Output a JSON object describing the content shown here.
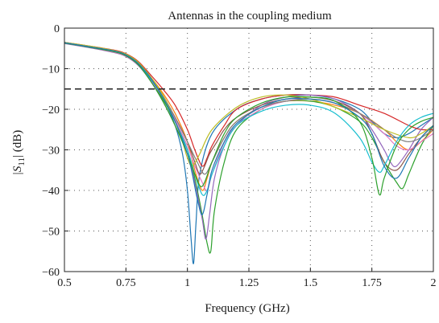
{
  "chart_data": {
    "type": "line",
    "title": "Antennas in the coupling medium",
    "xlabel": "Frequency (GHz)",
    "ylabel_main": "|S",
    "ylabel_sub": "11",
    "ylabel_tail": "| (dB)",
    "xlim": [
      0.5,
      2.0
    ],
    "ylim": [
      -60,
      0
    ],
    "xticks": [
      0.5,
      0.75,
      1.0,
      1.25,
      1.5,
      1.75,
      2.0
    ],
    "xtick_labels": [
      "0.5",
      "0.75",
      "1",
      "1.25",
      "1.5",
      "1.75",
      "2"
    ],
    "yticks": [
      0,
      -10,
      -20,
      -30,
      -40,
      -50,
      -60
    ],
    "ytick_labels": [
      "0",
      "−10",
      "−20",
      "−30",
      "−40",
      "−50",
      "−60"
    ],
    "grid": true,
    "reference_line": {
      "y": -15,
      "style": "dashed",
      "color": "#222222"
    },
    "series": [
      {
        "color": "#1f77b4",
        "x": [
          0.5,
          0.6,
          0.7,
          0.75,
          0.8,
          0.85,
          0.9,
          0.95,
          0.98,
          1.0,
          1.015,
          1.025,
          1.035,
          1.05,
          1.1,
          1.2,
          1.3,
          1.4,
          1.5,
          1.6,
          1.7,
          1.75,
          1.8,
          1.85,
          1.9,
          1.95,
          2.0
        ],
        "y": [
          -3.5,
          -4.5,
          -5.5,
          -6.5,
          -8.5,
          -12,
          -17,
          -24,
          -31,
          -40,
          -52,
          -58,
          -48,
          -36,
          -26,
          -20,
          -17.5,
          -16.5,
          -16.5,
          -17.5,
          -20,
          -23,
          -26,
          -27,
          -26,
          -24,
          -22
        ]
      },
      {
        "color": "#ff7f0e",
        "x": [
          0.5,
          0.6,
          0.7,
          0.75,
          0.8,
          0.85,
          0.9,
          0.95,
          1.0,
          1.03,
          1.06,
          1.08,
          1.1,
          1.15,
          1.2,
          1.3,
          1.4,
          1.5,
          1.6,
          1.7,
          1.8,
          1.85,
          1.9,
          1.95,
          2.0
        ],
        "y": [
          -3.6,
          -4.6,
          -5.6,
          -6.6,
          -8.6,
          -12,
          -16,
          -21,
          -28,
          -35,
          -40,
          -37,
          -33,
          -27,
          -23,
          -19.5,
          -18,
          -18,
          -19,
          -21,
          -25,
          -28,
          -30,
          -28,
          -25
        ]
      },
      {
        "color": "#2ca02c",
        "x": [
          0.5,
          0.6,
          0.7,
          0.75,
          0.8,
          0.85,
          0.9,
          0.95,
          1.0,
          1.03,
          1.06,
          1.08,
          1.095,
          1.11,
          1.15,
          1.2,
          1.3,
          1.4,
          1.5,
          1.6,
          1.7,
          1.75,
          1.8,
          1.85,
          1.875,
          1.9,
          1.95,
          2.0
        ],
        "y": [
          -3.7,
          -4.7,
          -5.8,
          -6.8,
          -9,
          -13,
          -17.5,
          -23,
          -30,
          -37,
          -46,
          -53,
          -55,
          -45,
          -33,
          -25,
          -20,
          -18,
          -18,
          -19.5,
          -23,
          -27,
          -33,
          -38,
          -39.5,
          -36,
          -29,
          -24
        ]
      },
      {
        "color": "#d62728",
        "x": [
          0.5,
          0.6,
          0.7,
          0.75,
          0.8,
          0.85,
          0.9,
          0.95,
          1.0,
          1.03,
          1.06,
          1.08,
          1.1,
          1.15,
          1.2,
          1.3,
          1.4,
          1.5,
          1.6,
          1.7,
          1.8,
          1.9,
          1.95,
          2.0
        ],
        "y": [
          -3.5,
          -4.4,
          -5.4,
          -6.3,
          -8.2,
          -11.5,
          -15,
          -19,
          -25,
          -30,
          -34,
          -32,
          -29,
          -24,
          -20,
          -17.5,
          -16.5,
          -16.5,
          -17,
          -19,
          -21,
          -24,
          -25,
          -25
        ]
      },
      {
        "color": "#9467bd",
        "x": [
          0.5,
          0.6,
          0.7,
          0.75,
          0.8,
          0.85,
          0.9,
          0.95,
          1.0,
          1.03,
          1.06,
          1.075,
          1.09,
          1.11,
          1.15,
          1.2,
          1.3,
          1.4,
          1.5,
          1.6,
          1.7,
          1.75,
          1.8,
          1.825,
          1.85,
          1.9,
          1.95,
          2.0
        ],
        "y": [
          -3.8,
          -4.8,
          -6,
          -7,
          -9.2,
          -13,
          -18,
          -24,
          -31,
          -38,
          -47,
          -52,
          -46,
          -37,
          -29,
          -24,
          -19,
          -17,
          -16.5,
          -17.5,
          -21,
          -25,
          -30,
          -33,
          -34,
          -30,
          -25,
          -22
        ]
      },
      {
        "color": "#8c564b",
        "x": [
          0.5,
          0.6,
          0.7,
          0.75,
          0.8,
          0.85,
          0.9,
          0.95,
          1.0,
          1.03,
          1.05,
          1.07,
          1.09,
          1.12,
          1.15,
          1.2,
          1.3,
          1.4,
          1.5,
          1.6,
          1.7,
          1.75,
          1.8,
          1.85,
          1.9,
          1.95,
          2.0
        ],
        "y": [
          -3.6,
          -4.6,
          -5.7,
          -6.7,
          -8.8,
          -12.5,
          -17,
          -22,
          -28,
          -33,
          -36,
          -34,
          -31,
          -28,
          -25,
          -22,
          -19,
          -17.5,
          -17,
          -18,
          -21,
          -26,
          -33,
          -35,
          -31,
          -27,
          -24
        ]
      },
      {
        "color": "#e377c2",
        "x": [
          0.5,
          0.6,
          0.7,
          0.75,
          0.8,
          0.85,
          0.9,
          0.95,
          1.0,
          1.03,
          1.06,
          1.08,
          1.1,
          1.13,
          1.16,
          1.2,
          1.3,
          1.4,
          1.5,
          1.6,
          1.7,
          1.8,
          1.85,
          1.9,
          1.95,
          2.0
        ],
        "y": [
          -3.7,
          -4.7,
          -5.9,
          -6.9,
          -9,
          -12.8,
          -17,
          -22.5,
          -29,
          -34,
          -38,
          -40,
          -36,
          -31,
          -27,
          -24,
          -20,
          -18,
          -17.5,
          -18.5,
          -21,
          -26,
          -29,
          -30,
          -28,
          -26
        ]
      },
      {
        "color": "#7f7f7f",
        "x": [
          0.5,
          0.6,
          0.7,
          0.75,
          0.8,
          0.85,
          0.9,
          0.95,
          1.0,
          1.04,
          1.07,
          1.1,
          1.15,
          1.2,
          1.3,
          1.4,
          1.5,
          1.6,
          1.7,
          1.8,
          1.85,
          1.9,
          1.95,
          2.0
        ],
        "y": [
          -3.6,
          -4.5,
          -5.6,
          -6.5,
          -8.5,
          -12,
          -16.5,
          -22,
          -28,
          -33,
          -36,
          -33,
          -27,
          -23,
          -19.5,
          -18,
          -17.5,
          -18.5,
          -21,
          -25,
          -27,
          -28,
          -27,
          -25
        ]
      },
      {
        "color": "#bcbd22",
        "x": [
          0.5,
          0.6,
          0.7,
          0.75,
          0.8,
          0.85,
          0.9,
          0.95,
          0.98,
          1.0,
          1.02,
          1.05,
          1.1,
          1.2,
          1.3,
          1.4,
          1.5,
          1.6,
          1.7,
          1.8,
          1.9,
          1.95,
          2.0
        ],
        "y": [
          -3.5,
          -4.4,
          -5.5,
          -6.4,
          -8.4,
          -12,
          -16.5,
          -23,
          -28,
          -32,
          -34,
          -31,
          -25,
          -19.5,
          -17,
          -16.5,
          -17.5,
          -19.5,
          -22,
          -25,
          -27,
          -26,
          -24
        ]
      },
      {
        "color": "#17becf",
        "x": [
          0.5,
          0.6,
          0.7,
          0.75,
          0.8,
          0.85,
          0.9,
          0.95,
          1.0,
          1.03,
          1.06,
          1.08,
          1.1,
          1.15,
          1.2,
          1.3,
          1.4,
          1.5,
          1.6,
          1.7,
          1.75,
          1.78,
          1.8,
          1.85,
          1.9,
          1.95,
          2.0
        ],
        "y": [
          -3.6,
          -4.6,
          -5.7,
          -6.7,
          -8.8,
          -12.5,
          -17,
          -23,
          -30,
          -36,
          -41,
          -40,
          -36,
          -29,
          -24,
          -20.5,
          -19,
          -19,
          -21,
          -27,
          -33,
          -35.5,
          -34,
          -28,
          -24,
          -22,
          -21
        ]
      },
      {
        "color": "#2ca02c",
        "x": [
          0.5,
          0.6,
          0.7,
          0.75,
          0.8,
          0.85,
          0.9,
          0.95,
          1.0,
          1.03,
          1.06,
          1.1,
          1.15,
          1.2,
          1.3,
          1.4,
          1.5,
          1.6,
          1.7,
          1.75,
          1.78,
          1.8,
          1.85,
          1.9,
          1.95,
          2.0
        ],
        "y": [
          -3.7,
          -4.7,
          -5.8,
          -6.8,
          -9,
          -13,
          -18,
          -24,
          -31,
          -36,
          -39,
          -33,
          -26,
          -22,
          -18.5,
          -17,
          -17,
          -18,
          -23,
          -32,
          -41,
          -37,
          -29,
          -25,
          -23,
          -22
        ]
      },
      {
        "color": "#1f77b4",
        "x": [
          0.5,
          0.6,
          0.7,
          0.75,
          0.8,
          0.85,
          0.9,
          0.95,
          1.0,
          1.02,
          1.04,
          1.06,
          1.08,
          1.1,
          1.15,
          1.2,
          1.3,
          1.4,
          1.5,
          1.6,
          1.7,
          1.75,
          1.8,
          1.85,
          1.9,
          1.95,
          2.0
        ],
        "y": [
          -3.6,
          -4.6,
          -5.6,
          -6.6,
          -8.7,
          -12.3,
          -17,
          -23,
          -31,
          -36,
          -42,
          -46,
          -41,
          -35,
          -28,
          -23.5,
          -19.5,
          -17.5,
          -17.5,
          -18.5,
          -22,
          -26,
          -34,
          -37,
          -32,
          -27,
          -24
        ]
      }
    ]
  }
}
